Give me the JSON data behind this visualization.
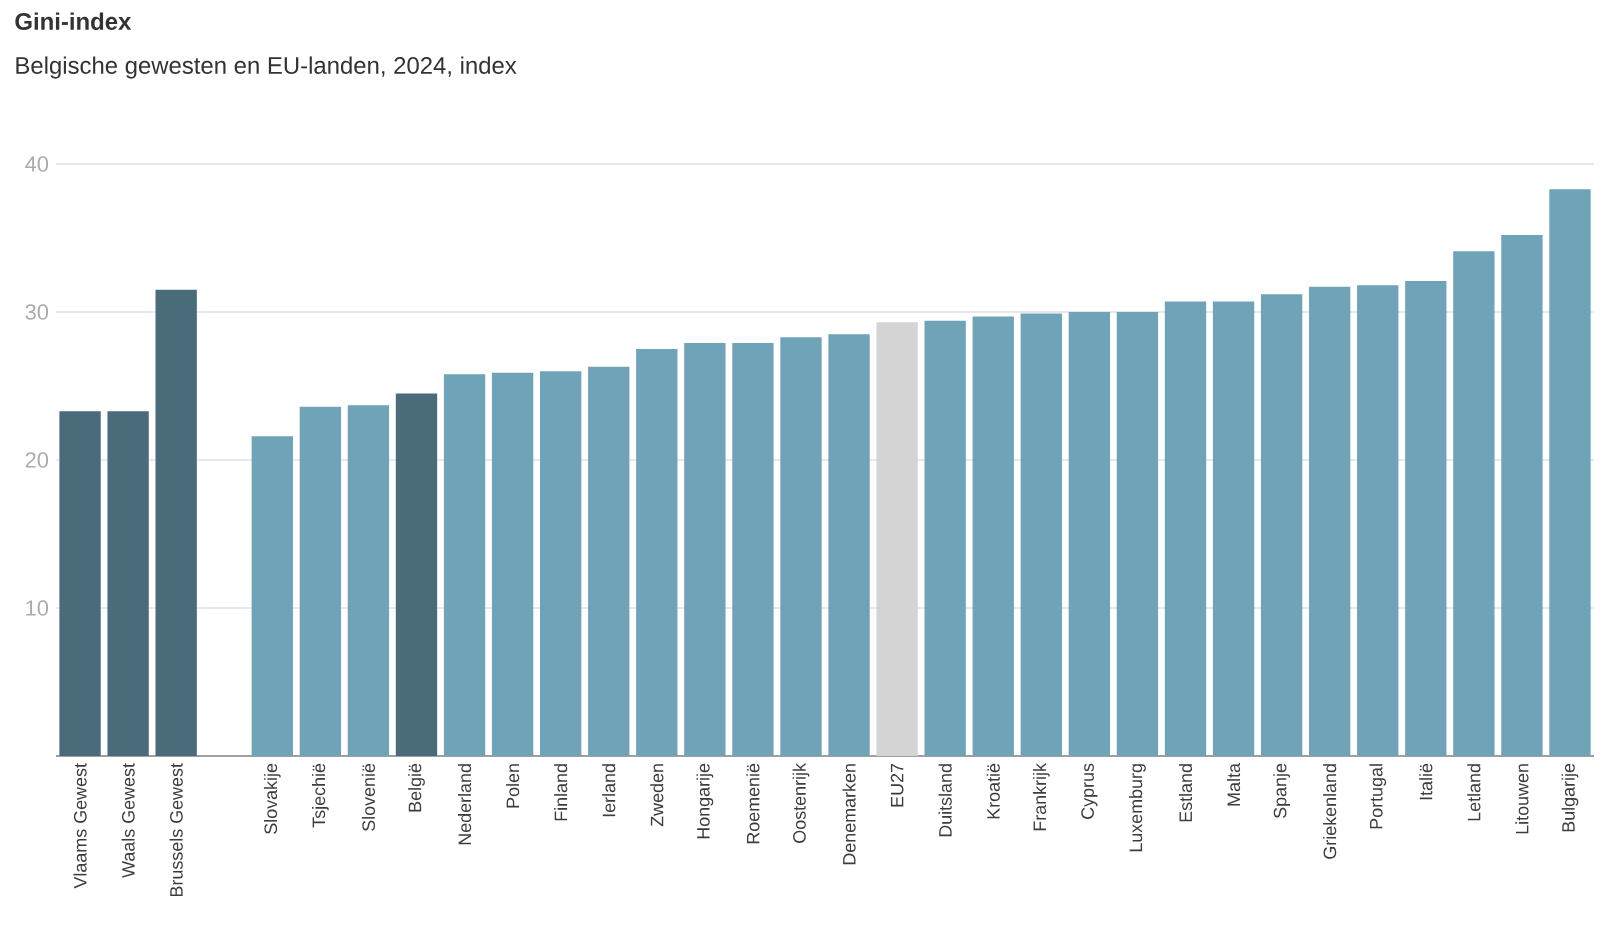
{
  "chart_data": {
    "type": "bar",
    "title": "Gini-index",
    "subtitle": "Belgische gewesten en EU-landen, 2024, index",
    "categories": [
      "Vlaams Gewest",
      "Waals Gewest",
      "Brussels Gewest",
      null,
      "Slovakije",
      "Tsjechië",
      "Slovenië",
      "België",
      "Nederland",
      "Polen",
      "Finland",
      "Ierland",
      "Zweden",
      "Hongarije",
      "Roemenië",
      "Oostenrijk",
      "Denemarken",
      "EU27",
      "Duitsland",
      "Kroatië",
      "Frankrijk",
      "Cyprus",
      "Luxemburg",
      "Estland",
      "Malta",
      "Spanje",
      "Griekenland",
      "Portugal",
      "Italië",
      "Letland",
      "Litouwen",
      "Bulgarije"
    ],
    "values": [
      23.3,
      23.3,
      31.5,
      null,
      21.6,
      23.6,
      23.7,
      24.5,
      25.8,
      25.9,
      26.0,
      26.3,
      27.5,
      27.9,
      27.9,
      28.3,
      28.5,
      29.3,
      29.4,
      29.7,
      29.9,
      30.0,
      30.0,
      30.7,
      30.7,
      31.2,
      31.7,
      31.8,
      32.1,
      34.1,
      35.2,
      38.3
    ],
    "colors": [
      "#4a6b7a",
      "#4a6b7a",
      "#4a6b7a",
      "#4a6b7a",
      "#6fa3b8",
      "#6fa3b8",
      "#6fa3b8",
      "#4a6b7a",
      "#6fa3b8",
      "#6fa3b8",
      "#6fa3b8",
      "#6fa3b8",
      "#6fa3b8",
      "#6fa3b8",
      "#6fa3b8",
      "#6fa3b8",
      "#6fa3b8",
      "#d4d4d4",
      "#6fa3b8",
      "#6fa3b8",
      "#6fa3b8",
      "#6fa3b8",
      "#6fa3b8",
      "#6fa3b8",
      "#6fa3b8",
      "#6fa3b8",
      "#6fa3b8",
      "#6fa3b8",
      "#6fa3b8",
      "#6fa3b8",
      "#6fa3b8",
      "#6fa3b8"
    ],
    "ylim": [
      0,
      40
    ],
    "yticks": [
      10,
      20,
      30,
      40
    ],
    "grid": "y"
  }
}
